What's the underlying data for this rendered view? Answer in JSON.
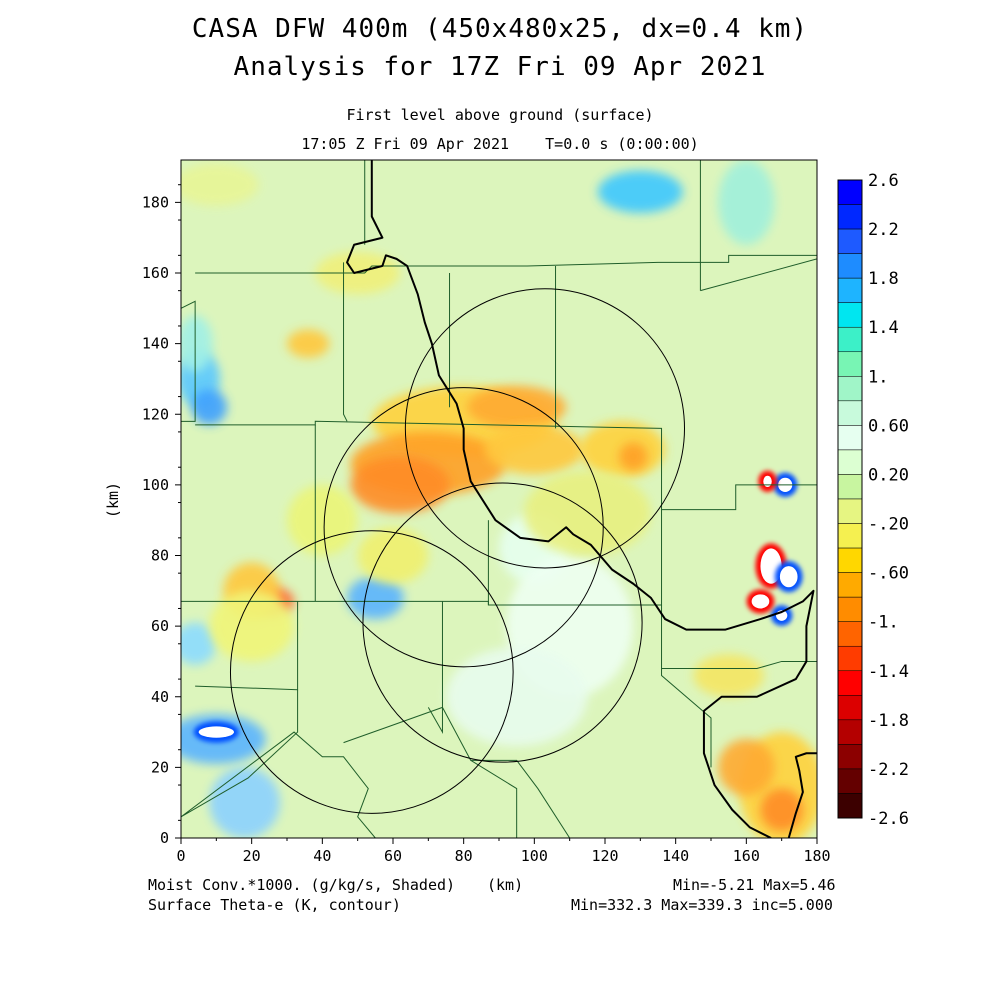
{
  "header": {
    "title_line1": "CASA DFW 400m (450x480x25, dx=0.4 km)",
    "title_line2": "Analysis for 17Z Fri 09 Apr 2021",
    "subtitle_line1": "First level above ground (surface)",
    "subtitle_line2": "17:05 Z Fri 09 Apr 2021    T=0.0 s (0:00:00)"
  },
  "footer": {
    "field1_label": "Moist Conv.*1000. (g/kg/s, Shaded)",
    "xunit": "(km)",
    "field1_range": "Min=-5.21 Max=5.46",
    "field2_label": "Surface Theta-e (K, contour)",
    "field2_range": "Min=332.3 Max=339.3 inc=5.000"
  },
  "chart_data": {
    "type": "heatmap",
    "xlabel": "(km)",
    "ylabel": "(km)",
    "xlim": [
      0,
      180
    ],
    "ylim": [
      0,
      192
    ],
    "xticks": [
      0,
      20,
      40,
      60,
      80,
      100,
      120,
      140,
      160,
      180
    ],
    "yticks": [
      0,
      20,
      40,
      60,
      80,
      100,
      120,
      140,
      160,
      180
    ],
    "colorbar": {
      "labels": [
        "2.6",
        "2.2",
        "1.8",
        "1.4",
        "1.",
        "0.60",
        "0.20",
        "-.20",
        "-.60",
        "-1.",
        "-1.4",
        "-1.8",
        "-2.2",
        "-2.6"
      ],
      "colors": [
        "#0000ff",
        "#0028ff",
        "#1e5aff",
        "#1e8cff",
        "#1eb4ff",
        "#00e6f0",
        "#3cf0c8",
        "#78f5b4",
        "#a0f5c8",
        "#c8fadc",
        "#e6fff0",
        "#dcffd2",
        "#c8f5a0",
        "#e6f582",
        "#f5f050",
        "#ffd700",
        "#ffaa00",
        "#ff8c00",
        "#ff6400",
        "#ff3c00",
        "#ff0000",
        "#dc0000",
        "#b40000",
        "#8c0000",
        "#640000",
        "#3c0000"
      ]
    },
    "radar_rings": [
      {
        "center_km": [
          103,
          116
        ],
        "radius_km": 39.5
      },
      {
        "center_km": [
          80,
          88
        ],
        "radius_km": 39.5
      },
      {
        "center_km": [
          91,
          61
        ],
        "radius_km": 39.5
      },
      {
        "center_km": [
          54,
          47
        ],
        "radius_km": 40
      }
    ],
    "theta_e_contour_km": [
      [
        54,
        192
      ],
      [
        54,
        176
      ],
      [
        57,
        170
      ],
      [
        49,
        168
      ],
      [
        47,
        163
      ],
      [
        49,
        160
      ],
      [
        57,
        162
      ],
      [
        58,
        165
      ],
      [
        61,
        164
      ],
      [
        64,
        162
      ],
      [
        67,
        154
      ],
      [
        69,
        146
      ],
      [
        71,
        140
      ],
      [
        73,
        131
      ],
      [
        78,
        123
      ],
      [
        80,
        116
      ],
      [
        80,
        110
      ],
      [
        82,
        101
      ],
      [
        89,
        90
      ],
      [
        96,
        85
      ],
      [
        104,
        84
      ],
      [
        109,
        88
      ],
      [
        111,
        86
      ],
      [
        116,
        83
      ],
      [
        122,
        76
      ],
      [
        128,
        72
      ],
      [
        133,
        68
      ],
      [
        137,
        62
      ],
      [
        143,
        59
      ],
      [
        154,
        59
      ],
      [
        164,
        62
      ],
      [
        170,
        64
      ],
      [
        176,
        67
      ],
      [
        179,
        70
      ],
      [
        177,
        60
      ],
      [
        177,
        50
      ],
      [
        174,
        45
      ],
      [
        163,
        40
      ],
      [
        153,
        40
      ],
      [
        148,
        36
      ],
      [
        148,
        24
      ],
      [
        151,
        15
      ],
      [
        156,
        8
      ],
      [
        161,
        3
      ],
      [
        167,
        0
      ]
    ],
    "theta_e_contour2_km": [
      [
        172,
        0
      ],
      [
        174,
        7
      ],
      [
        176,
        13
      ],
      [
        175,
        19
      ],
      [
        174,
        23
      ],
      [
        177,
        24
      ],
      [
        180,
        24
      ]
    ],
    "anomalies": [
      {
        "x": 8,
        "y": 30,
        "value": 5.46
      },
      {
        "x": 167,
        "y": 76,
        "value": -2.6
      },
      {
        "x": 171,
        "y": 100,
        "value": 2.6
      },
      {
        "x": 170,
        "y": 63,
        "value": 2.2
      },
      {
        "x": 75,
        "y": 108,
        "value": -1.0
      },
      {
        "x": 95,
        "y": 122,
        "value": -1.0
      },
      {
        "x": 25,
        "y": 67,
        "value": -1.4
      }
    ]
  }
}
